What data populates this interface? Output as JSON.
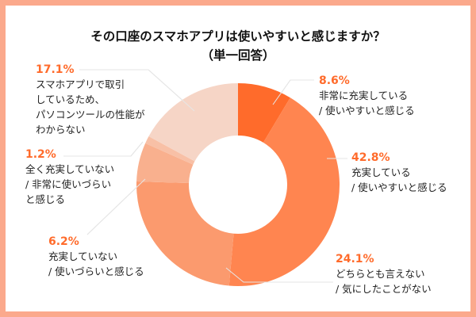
{
  "chart_data": {
    "type": "pie",
    "donut": true,
    "title": "その口座のスマホアプリは使いやすいと感じますか？",
    "subtitle": "（単一回答）",
    "unit": "%",
    "slices": [
      {
        "label": [
          "非常に充実している",
          "/ 使いやすいと感じる"
        ],
        "value": 8.6,
        "value_label": "8.6%",
        "color": "#ff6b2b"
      },
      {
        "label": [
          "充実している",
          "/ 使いやすいと感じる"
        ],
        "value": 42.8,
        "value_label": "42.8%",
        "color": "#ff8550"
      },
      {
        "label": [
          "どちらとも言えない",
          "/ 気にしたことがない"
        ],
        "value": 24.1,
        "value_label": "24.1%",
        "color": "#fb9a6e"
      },
      {
        "label": [
          "充実していない",
          "/ 使いづらいと感じる"
        ],
        "value": 6.2,
        "value_label": "6.2%",
        "color": "#f9b08e"
      },
      {
        "label": [
          "全く充実していない",
          "/ 非常に使いづらい",
          "と感じる"
        ],
        "value": 1.2,
        "value_label": "1.2%",
        "color": "#f8c0a6"
      },
      {
        "label": [
          "スマホアプリで取引",
          "しているため、",
          "パソコンツールの性能が",
          "わからない"
        ],
        "value": 17.1,
        "value_label": "17.1%",
        "color": "#f6d5c6"
      }
    ],
    "legend": "none (callout labels)"
  },
  "frame_color": "#fba98c"
}
